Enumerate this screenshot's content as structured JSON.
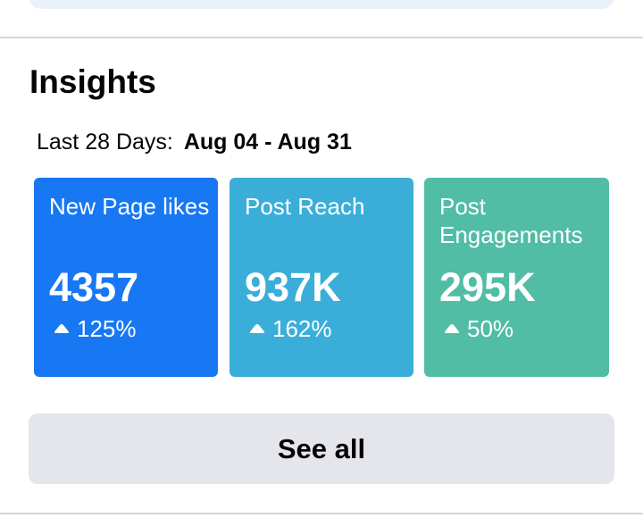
{
  "insights": {
    "title": "Insights",
    "range_label": "Last 28 Days:",
    "range_value": "Aug 04 - Aug 31",
    "cards": [
      {
        "label": "New Page likes",
        "value": "4357",
        "change": "125%",
        "color": "#1877f2",
        "icon": "up-arrow-icon"
      },
      {
        "label": "Post Reach",
        "value": "937K",
        "change": "162%",
        "color": "#3aaed8",
        "icon": "up-arrow-icon"
      },
      {
        "label": "Post Engagements",
        "value": "295K",
        "change": "50%",
        "color": "#51bda5",
        "icon": "up-arrow-icon"
      }
    ],
    "see_all_label": "See all"
  }
}
